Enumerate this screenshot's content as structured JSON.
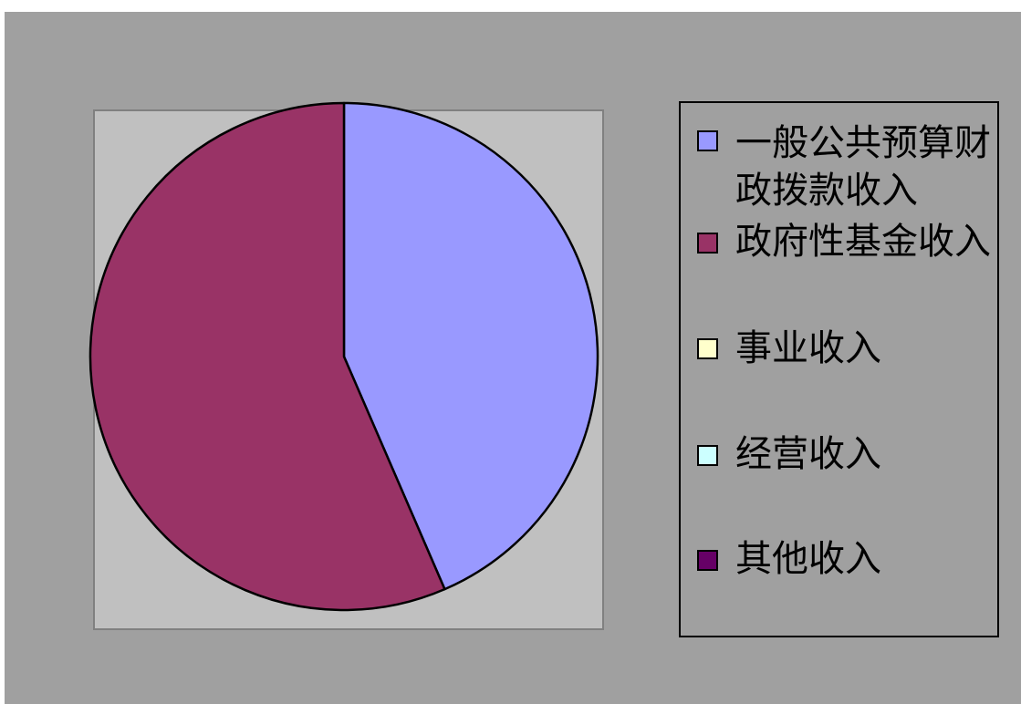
{
  "chart_data": {
    "type": "pie",
    "slices": [
      {
        "label": "一般公共预算财政拨款收入",
        "value": 43.5,
        "color": "#9999ff"
      },
      {
        "label": "政府性基金收入",
        "value": 56.5,
        "color": "#993366"
      },
      {
        "label": "事业收入",
        "value": 0,
        "color": "#ffffcc"
      },
      {
        "label": "经营收入",
        "value": 0,
        "color": "#ccffff"
      },
      {
        "label": "其他收入",
        "value": 0,
        "color": "#660066"
      }
    ],
    "legend_position": "right"
  }
}
